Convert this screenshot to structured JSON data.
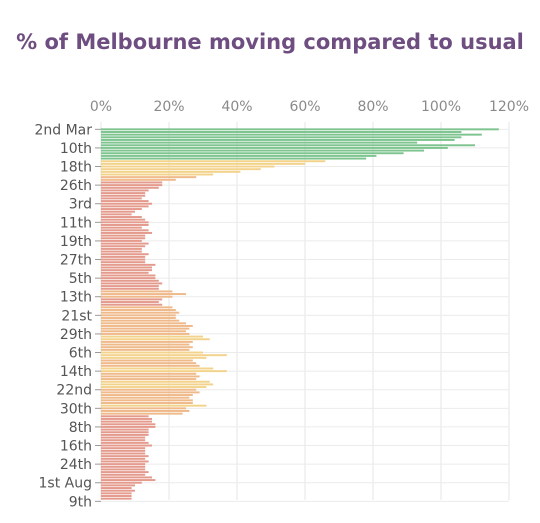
{
  "chart_data": {
    "type": "bar",
    "orientation": "horizontal",
    "title": "% of Melbourne moving compared to usual",
    "xlabel": "",
    "ylabel": "",
    "xlim": [
      0,
      120
    ],
    "x_ticks": [
      "0%",
      "20%",
      "40%",
      "60%",
      "80%",
      "100%",
      "120%"
    ],
    "grid": true,
    "y_tick_labels": [
      "2nd Mar",
      "10th",
      "18th",
      "26th",
      "3rd",
      "11th",
      "19th",
      "27th",
      "5th",
      "13th",
      "21st",
      "29th",
      "6th",
      "14th",
      "22nd",
      "30th",
      "8th",
      "16th",
      "24th",
      "1st Aug",
      "9th"
    ],
    "colors": {
      "green": "#7ec48f",
      "yellow": "#f3d38c",
      "orange": "#efb98a",
      "red": "#e49a8c"
    },
    "values": [
      117,
      106,
      112,
      106,
      104,
      93,
      110,
      102,
      95,
      89,
      81,
      78,
      66,
      60,
      51,
      47,
      41,
      33,
      28,
      22,
      18,
      18,
      17,
      14,
      13,
      13,
      12,
      14,
      15,
      14,
      12,
      10,
      9,
      12,
      13,
      14,
      14,
      12,
      14,
      15,
      13,
      13,
      12,
      14,
      13,
      12,
      12,
      14,
      13,
      13,
      13,
      16,
      15,
      15,
      14,
      16,
      16,
      17,
      18,
      17,
      17,
      21,
      25,
      21,
      18,
      17,
      18,
      21,
      22,
      23,
      22,
      22,
      23,
      25,
      27,
      26,
      25,
      26,
      30,
      32,
      27,
      26,
      27,
      26,
      30,
      37,
      31,
      27,
      28,
      29,
      33,
      37,
      28,
      29,
      28,
      32,
      33,
      31,
      28,
      29,
      27,
      26,
      27,
      27,
      31,
      25,
      26,
      24,
      14,
      15,
      15,
      16,
      16,
      14,
      14,
      14,
      13,
      13,
      14,
      15,
      13,
      13,
      13,
      14,
      13,
      14,
      13,
      13,
      13,
      14,
      13,
      15,
      16,
      12,
      10,
      9,
      10,
      9,
      9,
      9
    ]
  }
}
